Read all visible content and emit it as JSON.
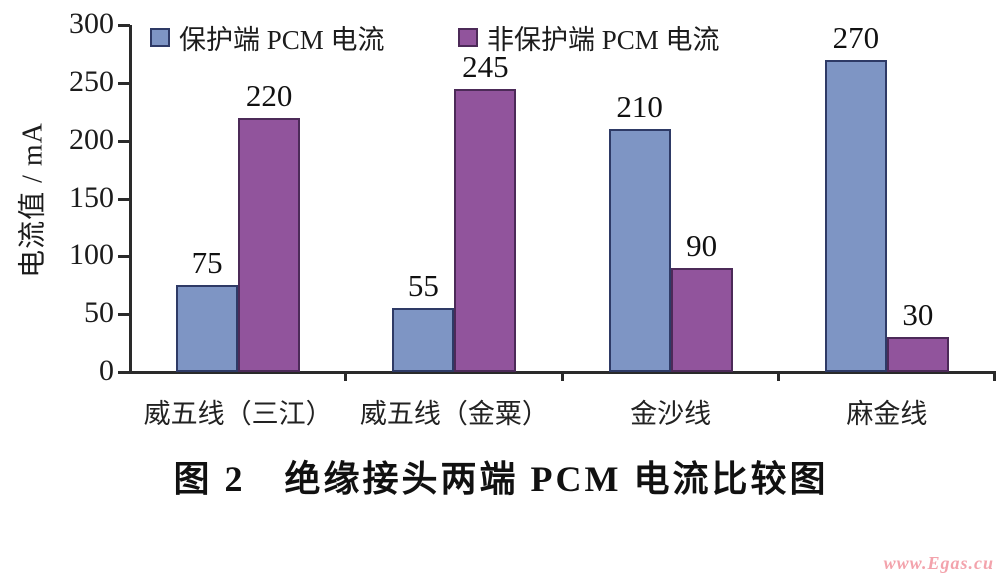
{
  "chart_data": {
    "type": "bar",
    "categories": [
      "威五线（三江）",
      "威五线（金粟）",
      "金沙线",
      "麻金线"
    ],
    "series": [
      {
        "name": "保护端 PCM 电流",
        "color": "#7e95c4",
        "border_color": "#2e3a66",
        "values": [
          75,
          55,
          210,
          270
        ]
      },
      {
        "name": "非保护端 PCM 电流",
        "color": "#91549c",
        "border_color": "#4c2a58",
        "values": [
          220,
          245,
          90,
          30
        ]
      }
    ],
    "title": "图 2　绝缘接头两端 PCM 电流比较图",
    "xlabel": "",
    "ylabel": "电流值 / mA",
    "ylim": [
      0,
      300
    ],
    "yticks": [
      0,
      50,
      100,
      150,
      200,
      250,
      300
    ],
    "grid": false,
    "legend_position": "top-inside",
    "value_labels_shown": true
  },
  "watermark": {
    "text": "www.Egas.cu",
    "color": "#f3a3ac"
  }
}
